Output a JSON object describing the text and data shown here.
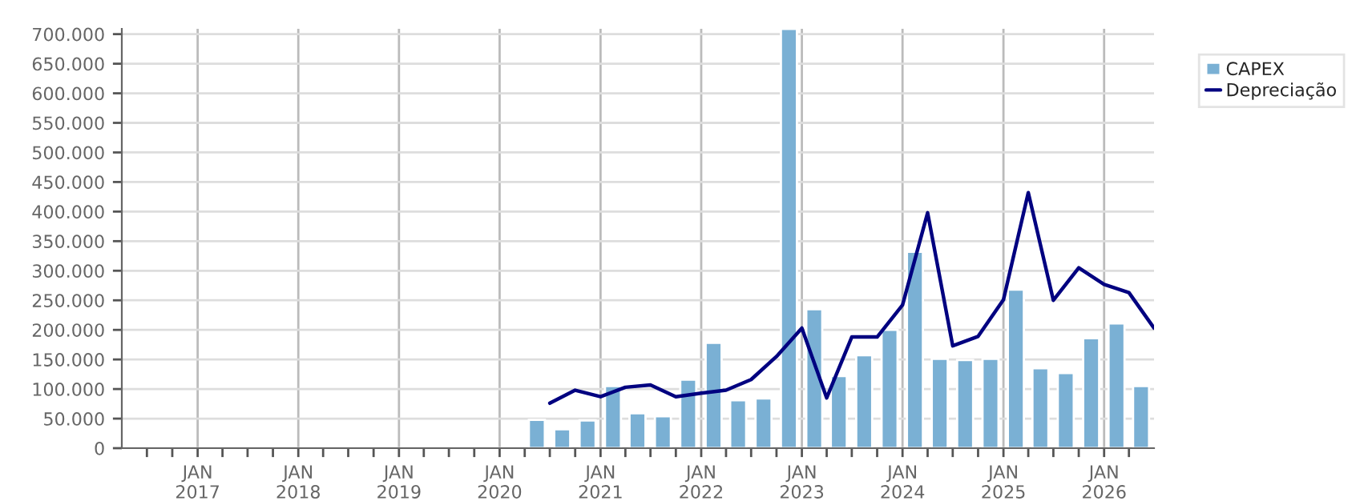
{
  "chart_data": {
    "type": "bar",
    "x": [
      "2020-05-15",
      "2020-08-15",
      "2020-11-15",
      "2021-02-15",
      "2021-05-15",
      "2021-08-15",
      "2021-11-15",
      "2022-02-15",
      "2022-05-15",
      "2022-08-15",
      "2022-11-15",
      "2023-02-15",
      "2023-05-15",
      "2023-08-15",
      "2023-11-15",
      "2024-02-15",
      "2024-05-15",
      "2024-08-15",
      "2024-11-15",
      "2025-02-15",
      "2025-05-15",
      "2025-08-15",
      "2025-11-15",
      "2026-02-15",
      "2026-05-15"
    ],
    "series": [
      {
        "name": "CAPEX",
        "color": "#7ab0d4",
        "values": [
          48000,
          32000,
          47000,
          105000,
          59000,
          54000,
          116000,
          178000,
          81000,
          84000,
          709000,
          235000,
          122000,
          157000,
          200000,
          332000,
          151000,
          149000,
          151000,
          268000,
          135000,
          127000,
          186000,
          211000,
          105000
        ]
      },
      {
        "name": "Depreciação",
        "type": "line",
        "color": "#000080",
        "x": [
          "2020-07-01",
          "2020-10-01",
          "2021-01-01",
          "2021-04-01",
          "2021-07-01",
          "2021-10-01",
          "2022-01-01",
          "2022-04-01",
          "2022-07-01",
          "2022-10-01",
          "2023-01-01",
          "2023-04-01",
          "2023-07-01",
          "2023-10-01",
          "2024-01-01",
          "2024-04-01",
          "2024-07-01",
          "2024-10-01",
          "2025-01-01",
          "2025-04-01",
          "2025-07-01",
          "2025-10-01",
          "2026-01-01",
          "2026-04-01",
          "2026-07-01"
        ],
        "values": [
          76000,
          98000,
          87000,
          103000,
          107000,
          87000,
          93000,
          98000,
          116000,
          155000,
          203000,
          85000,
          188000,
          188000,
          242000,
          398000,
          173000,
          189000,
          251000,
          432000,
          250000,
          305000,
          277000,
          263000,
          203000
        ]
      }
    ],
    "xlim": [
      "2016-04-01",
      "2026-07-01"
    ],
    "xticks": [
      {
        "value": "2016-07-01",
        "label": null
      },
      {
        "value": "2016-10-01",
        "label": null
      },
      {
        "value": "2017-01-01",
        "label": "JAN\n2017"
      },
      {
        "value": "2017-04-01",
        "label": null
      },
      {
        "value": "2017-07-01",
        "label": null
      },
      {
        "value": "2017-10-01",
        "label": null
      },
      {
        "value": "2018-01-01",
        "label": "JAN\n2018"
      },
      {
        "value": "2018-04-01",
        "label": null
      },
      {
        "value": "2018-07-01",
        "label": null
      },
      {
        "value": "2018-10-01",
        "label": null
      },
      {
        "value": "2019-01-01",
        "label": "JAN\n2019"
      },
      {
        "value": "2019-04-01",
        "label": null
      },
      {
        "value": "2019-07-01",
        "label": null
      },
      {
        "value": "2019-10-01",
        "label": null
      },
      {
        "value": "2020-01-01",
        "label": "JAN\n2020"
      },
      {
        "value": "2020-04-01",
        "label": null
      },
      {
        "value": "2020-07-01",
        "label": null
      },
      {
        "value": "2020-10-01",
        "label": null
      },
      {
        "value": "2021-01-01",
        "label": "JAN\n2021"
      },
      {
        "value": "2021-04-01",
        "label": null
      },
      {
        "value": "2021-07-01",
        "label": null
      },
      {
        "value": "2021-10-01",
        "label": null
      },
      {
        "value": "2022-01-01",
        "label": "JAN\n2022"
      },
      {
        "value": "2022-04-01",
        "label": null
      },
      {
        "value": "2022-07-01",
        "label": null
      },
      {
        "value": "2022-10-01",
        "label": null
      },
      {
        "value": "2023-01-01",
        "label": "JAN\n2023"
      },
      {
        "value": "2023-04-01",
        "label": null
      },
      {
        "value": "2023-07-01",
        "label": null
      },
      {
        "value": "2023-10-01",
        "label": null
      },
      {
        "value": "2024-01-01",
        "label": "JAN\n2024"
      },
      {
        "value": "2024-04-01",
        "label": null
      },
      {
        "value": "2024-07-01",
        "label": null
      },
      {
        "value": "2024-10-01",
        "label": null
      },
      {
        "value": "2025-01-01",
        "label": "JAN\n2025"
      },
      {
        "value": "2025-04-01",
        "label": null
      },
      {
        "value": "2025-07-01",
        "label": null
      },
      {
        "value": "2025-10-01",
        "label": null
      },
      {
        "value": "2026-01-01",
        "label": "JAN\n2026"
      },
      {
        "value": "2026-04-01",
        "label": null
      }
    ],
    "ylim": [
      0,
      709000
    ],
    "yticks": [
      0,
      {
        "value": 50000,
        "label": "50.000"
      },
      {
        "value": 100000,
        "label": "100.000"
      },
      {
        "value": 150000,
        "label": "150.000"
      },
      {
        "value": 200000,
        "label": "200.000"
      },
      {
        "value": 250000,
        "label": "250.000"
      },
      {
        "value": 300000,
        "label": "300.000"
      },
      {
        "value": 350000,
        "label": "350.000"
      },
      {
        "value": 400000,
        "label": "400.000"
      },
      {
        "value": 450000,
        "label": "450.000"
      },
      {
        "value": 500000,
        "label": "500.000"
      },
      {
        "value": 550000,
        "label": "550.000"
      },
      {
        "value": 600000,
        "label": "600.000"
      },
      {
        "value": 650000,
        "label": "650.000"
      },
      {
        "value": 700000,
        "label": "700.000"
      }
    ],
    "grid": true,
    "legend": "top right"
  }
}
